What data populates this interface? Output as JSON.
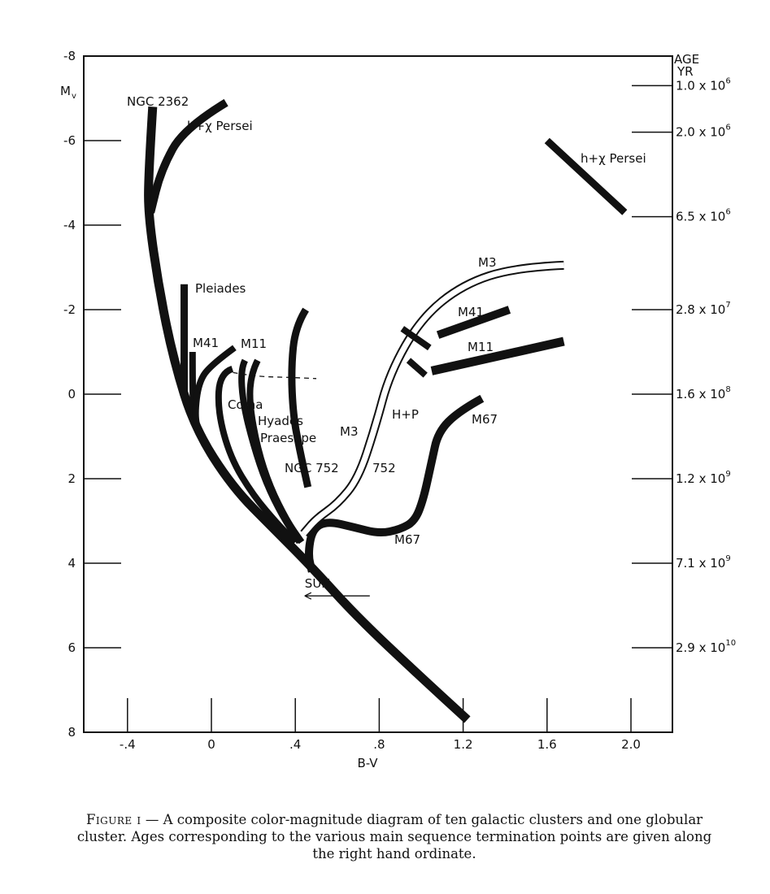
{
  "chart_data": {
    "type": "line",
    "x_label": "B-V",
    "y_label": "M",
    "y_label_sub": "v",
    "x_ticks": [
      "-.4",
      "0",
      ".4",
      ".8",
      "1.2",
      "1.6",
      "2.0"
    ],
    "x_tick_values": [
      -0.4,
      0,
      0.4,
      0.8,
      1.2,
      1.6,
      2.0
    ],
    "y_ticks": [
      "-8",
      "-6",
      "-4",
      "-2",
      "0",
      "2",
      "4",
      "6",
      "8"
    ],
    "y_tick_values": [
      -8,
      -6,
      -4,
      -2,
      0,
      2,
      4,
      6,
      8
    ],
    "xlim": [
      -0.58,
      2.2
    ],
    "ylim": [
      8,
      -8
    ],
    "age_axis_title": [
      "AGE",
      "YR"
    ],
    "age_ticks": [
      {
        "mv": -7.3,
        "mantissa": "1.0 x 10",
        "exp": "6"
      },
      {
        "mv": -6.2,
        "mantissa": "2.0 x 10",
        "exp": "6"
      },
      {
        "mv": -4.2,
        "mantissa": "6.5 x 10",
        "exp": "6"
      },
      {
        "mv": -2.0,
        "mantissa": "2.8 x 10",
        "exp": "7"
      },
      {
        "mv": 0.0,
        "mantissa": "1.6 x 10",
        "exp": "8"
      },
      {
        "mv": 2.0,
        "mantissa": "1.2 x 10",
        "exp": "9"
      },
      {
        "mv": 4.0,
        "mantissa": "7.1 x 10",
        "exp": "9"
      },
      {
        "mv": 6.0,
        "mantissa": "2.9 x 10",
        "exp": "10"
      }
    ],
    "series": [
      {
        "name": "NGC 2362",
        "style": "band",
        "width": 11,
        "points": [
          [
            -0.28,
            -6.8
          ],
          [
            -0.3,
            -5.2
          ],
          [
            -0.3,
            -4.2
          ],
          [
            -0.25,
            -2.5
          ],
          [
            -0.18,
            -0.8
          ],
          [
            -0.08,
            0.8
          ],
          [
            0.1,
            2.2
          ],
          [
            0.3,
            3.2
          ],
          [
            0.48,
            4.1
          ],
          [
            0.7,
            5.3
          ],
          [
            1.0,
            6.7
          ],
          [
            1.22,
            7.7
          ]
        ]
      },
      {
        "name": "h+χ Persei",
        "style": "band",
        "width": 10,
        "points": [
          [
            0.07,
            -6.9
          ],
          [
            -0.13,
            -6.3
          ],
          [
            -0.24,
            -5.3
          ],
          [
            -0.29,
            -4.3
          ]
        ]
      },
      {
        "name": "Pleiades",
        "style": "band",
        "width": 9,
        "points": [
          [
            -0.13,
            -2.6
          ],
          [
            -0.13,
            0.0
          ]
        ]
      },
      {
        "name": "M41",
        "style": "band",
        "width": 8,
        "points": [
          [
            -0.09,
            -1.0
          ],
          [
            -0.09,
            0.2
          ],
          [
            -0.08,
            0.6
          ]
        ]
      },
      {
        "name": "M11",
        "style": "band",
        "width": 8,
        "points": [
          [
            0.11,
            -1.1
          ],
          [
            0.0,
            -0.7
          ],
          [
            -0.06,
            -0.3
          ],
          [
            -0.08,
            0.5
          ],
          [
            -0.06,
            0.9
          ]
        ]
      },
      {
        "name": "Coma",
        "style": "band",
        "width": 8,
        "points": [
          [
            0.1,
            -0.6
          ],
          [
            0.04,
            -0.5
          ],
          [
            0.03,
            0.4
          ],
          [
            0.09,
            1.5
          ],
          [
            0.2,
            2.4
          ],
          [
            0.32,
            3.1
          ],
          [
            0.4,
            3.5
          ]
        ]
      },
      {
        "name": "Hyades",
        "style": "band",
        "width": 8,
        "points": [
          [
            0.16,
            -0.8
          ],
          [
            0.14,
            -0.6
          ],
          [
            0.15,
            0.2
          ],
          [
            0.2,
            1.2
          ],
          [
            0.26,
            2.1
          ],
          [
            0.34,
            2.9
          ],
          [
            0.42,
            3.5
          ]
        ]
      },
      {
        "name": "Praesepe",
        "style": "band",
        "width": 8,
        "points": [
          [
            0.22,
            -0.8
          ],
          [
            0.19,
            -0.5
          ],
          [
            0.18,
            0.2
          ],
          [
            0.22,
            1.3
          ],
          [
            0.28,
            2.2
          ],
          [
            0.36,
            3.0
          ],
          [
            0.43,
            3.5
          ]
        ]
      },
      {
        "name": "NGC 752",
        "style": "band",
        "width": 9,
        "points": [
          [
            0.45,
            -2.0
          ],
          [
            0.4,
            -1.6
          ],
          [
            0.38,
            -0.6
          ],
          [
            0.39,
            0.5
          ],
          [
            0.42,
            1.3
          ],
          [
            0.46,
            2.2
          ]
        ]
      },
      {
        "name": "M67",
        "style": "band",
        "width": 10,
        "points": [
          [
            1.29,
            0.1
          ],
          [
            1.18,
            0.4
          ],
          [
            1.08,
            0.9
          ],
          [
            1.05,
            1.6
          ],
          [
            1.01,
            2.5
          ],
          [
            0.97,
            3.0
          ],
          [
            0.9,
            3.2
          ],
          [
            0.8,
            3.3
          ],
          [
            0.68,
            3.15
          ],
          [
            0.55,
            3.0
          ],
          [
            0.48,
            3.2
          ],
          [
            0.46,
            3.8
          ],
          [
            0.48,
            4.2
          ]
        ]
      },
      {
        "name": "M3",
        "style": "outline",
        "width": 11,
        "points": [
          [
            1.68,
            -3.05
          ],
          [
            1.45,
            -3.0
          ],
          [
            1.2,
            -2.6
          ],
          [
            1.0,
            -1.8
          ],
          [
            0.85,
            -0.5
          ],
          [
            0.78,
            0.8
          ],
          [
            0.7,
            2.0
          ],
          [
            0.6,
            2.6
          ],
          [
            0.5,
            2.95
          ],
          [
            0.44,
            3.3
          ]
        ]
      },
      {
        "name": "M41",
        "style": "band",
        "width": 10,
        "points": [
          [
            1.08,
            -1.4
          ],
          [
            1.42,
            -2.0
          ]
        ]
      },
      {
        "name": "M11",
        "style": "band",
        "width": 11,
        "points": [
          [
            1.05,
            -0.55
          ],
          [
            1.68,
            -1.25
          ]
        ]
      },
      {
        "name": "H+P",
        "style": "band",
        "width": 8,
        "points": [
          [
            0.94,
            -0.8
          ],
          [
            1.02,
            -0.45
          ]
        ]
      },
      {
        "name": "752",
        "style": "band",
        "width": 8,
        "points": [
          [
            0.91,
            -1.55
          ],
          [
            1.04,
            -1.1
          ]
        ]
      },
      {
        "name": "h+χ Persei",
        "style": "band",
        "width": 9,
        "points": [
          [
            1.6,
            -6.0
          ],
          [
            1.97,
            -4.3
          ]
        ]
      }
    ],
    "dashed": [
      [
        0.06,
        -0.55
      ],
      [
        0.2,
        -0.42
      ],
      [
        0.36,
        -0.4
      ],
      [
        0.5,
        -0.37
      ]
    ],
    "sun": {
      "x": 0.6,
      "y": 4.6,
      "label": "SUN"
    },
    "labels": {
      "ngc2362": "NGC 2362",
      "hchi_top": "h+χ Persei",
      "hchi_right": "h+χ Persei",
      "pleiades": "Pleiades",
      "m41": "M41",
      "m11": "M11",
      "coma": "Coma",
      "hyades": "Hyades",
      "praesepe": "Praesepe",
      "ngc752": "NGC 752",
      "m67_low": "M67",
      "m67_up": "M67",
      "m3_top": "M3",
      "m3_mid": "M3",
      "m41_red": "M41",
      "m11_red": "M11",
      "hp": "H+P",
      "n752": "752"
    }
  },
  "caption": {
    "lead": "Figure i",
    "text": " — A composite color-magnitude diagram of ten galactic clusters and one globular cluster. Ages corresponding to the various main sequence termination points are given along the right hand ordinate."
  }
}
